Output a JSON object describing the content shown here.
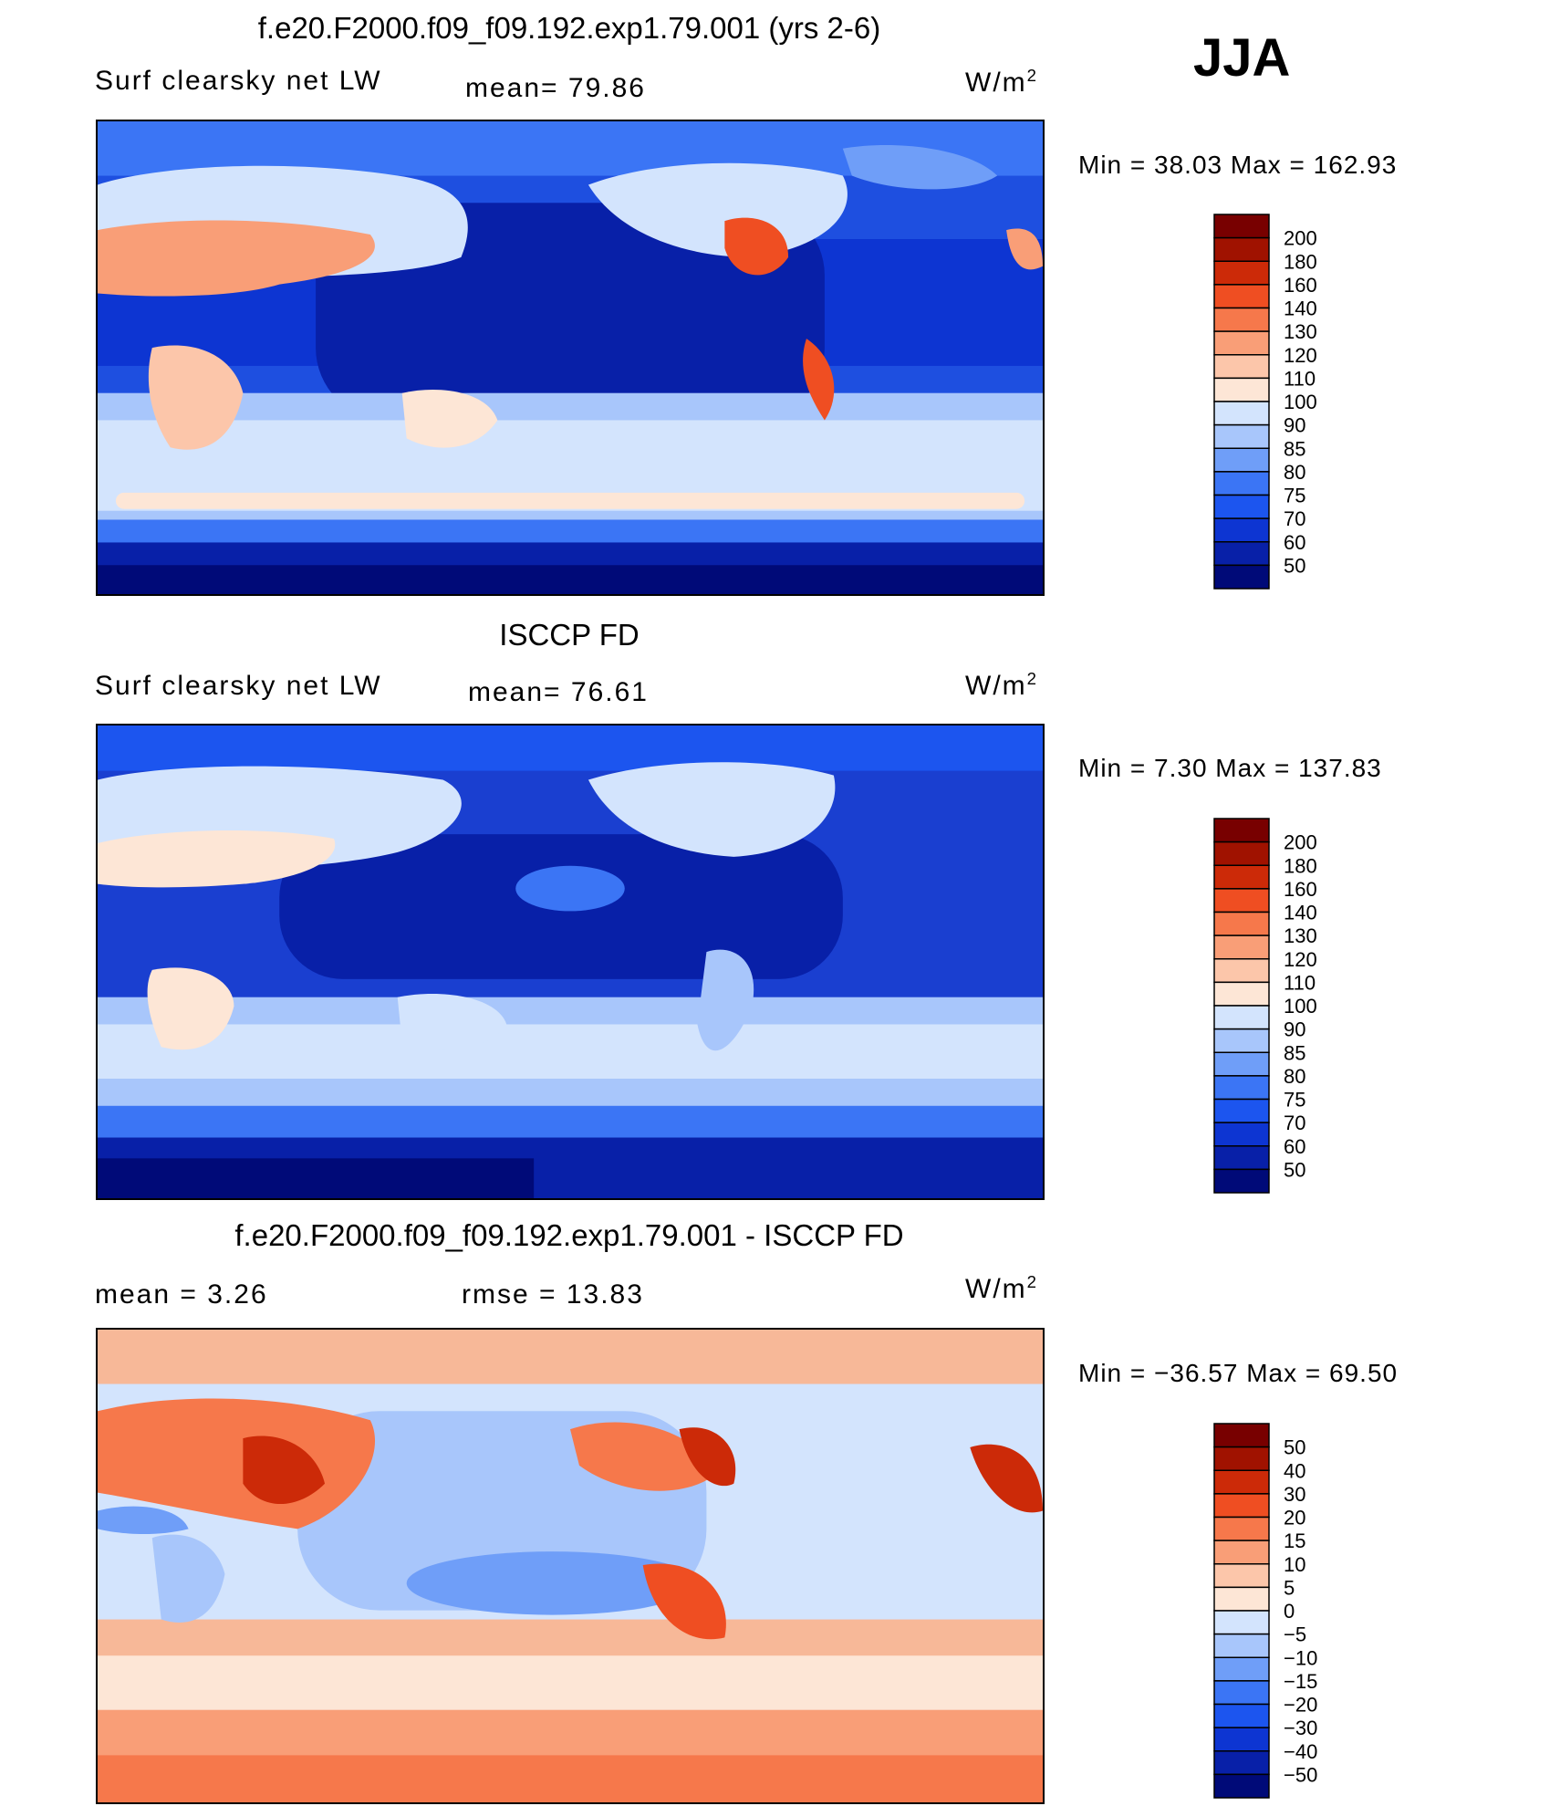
{
  "season": "JJA",
  "panels": [
    {
      "title": "f.e20.F2000.f09_f09.192.exp1.79.001 (yrs 2-6)",
      "variable": "Surf clearsky net LW",
      "stat1": "mean=   79.86",
      "stat2": "",
      "units": "W/m",
      "units_exp": "2",
      "minmax": "Min =   38.03 Max = 162.93",
      "palette": "abs",
      "map_base": "#1e4fe0"
    },
    {
      "title": "ISCCP FD",
      "variable": "Surf clearsky net LW",
      "stat1": "mean=   76.61",
      "stat2": "",
      "units": "W/m",
      "units_exp": "2",
      "minmax": "Min =    7.30 Max = 137.83",
      "palette": "abs",
      "map_base": "#1a3fd0"
    },
    {
      "title": "f.e20.F2000.f09_f09.192.exp1.79.001 - ISCCP FD",
      "variable": "",
      "stat1": "mean =    3.26",
      "stat2": "rmse =   13.83",
      "units": "W/m",
      "units_exp": "2",
      "minmax": "Min = −36.57 Max =   69.50",
      "palette": "diff",
      "map_base": "#f7b898"
    }
  ],
  "chart_data": [
    {
      "type": "heatmap",
      "title": "f.e20.F2000.f09_f09.192.exp1.79.001 (yrs 2-6)",
      "variable": "Surf clearsky net LW",
      "units": "W/m2",
      "mean": 79.86,
      "min": 38.03,
      "max": 162.93,
      "levels": [
        50,
        60,
        70,
        75,
        80,
        85,
        90,
        100,
        110,
        120,
        130,
        140,
        160,
        180,
        200
      ],
      "colors": [
        "#000a78",
        "#0820a8",
        "#0d35d2",
        "#1c55ef",
        "#3b75f5",
        "#6f9ef8",
        "#a8c6fb",
        "#d3e4fd",
        "#fde6d6",
        "#fcc6aa",
        "#f99e77",
        "#f6784b",
        "#ef4e22",
        "#cc2a08",
        "#a01200",
        "#780000"
      ]
    },
    {
      "type": "heatmap",
      "title": "ISCCP FD",
      "variable": "Surf clearsky net LW",
      "units": "W/m2",
      "mean": 76.61,
      "min": 7.3,
      "max": 137.83,
      "levels": [
        50,
        60,
        70,
        75,
        80,
        85,
        90,
        100,
        110,
        120,
        130,
        140,
        160,
        180,
        200
      ],
      "colors": [
        "#000a78",
        "#0820a8",
        "#0d35d2",
        "#1c55ef",
        "#3b75f5",
        "#6f9ef8",
        "#a8c6fb",
        "#d3e4fd",
        "#fde6d6",
        "#fcc6aa",
        "#f99e77",
        "#f6784b",
        "#ef4e22",
        "#cc2a08",
        "#a01200",
        "#780000"
      ]
    },
    {
      "type": "heatmap",
      "title": "f.e20.F2000.f09_f09.192.exp1.79.001 - ISCCP FD",
      "units": "W/m2",
      "mean": 3.26,
      "rmse": 13.83,
      "min": -36.57,
      "max": 69.5,
      "levels": [
        -50,
        -40,
        -30,
        -20,
        -15,
        -10,
        -5,
        0,
        5,
        10,
        15,
        20,
        30,
        40,
        50
      ],
      "colors": [
        "#000a78",
        "#0820a8",
        "#0d35d2",
        "#1c55ef",
        "#3b75f5",
        "#6f9ef8",
        "#a8c6fb",
        "#d3e4fd",
        "#fde6d6",
        "#fcc6aa",
        "#f99e77",
        "#f6784b",
        "#ef4e22",
        "#cc2a08",
        "#a01200",
        "#780000"
      ]
    }
  ],
  "colorbar_labels": {
    "abs": [
      "200",
      "180",
      "160",
      "140",
      "130",
      "120",
      "110",
      "100",
      "90",
      "85",
      "80",
      "75",
      "70",
      "60",
      "50"
    ],
    "diff": [
      "50",
      "40",
      "30",
      "20",
      "15",
      "10",
      "5",
      "0",
      "−5",
      "−10",
      "−15",
      "−20",
      "−30",
      "−40",
      "−50"
    ]
  },
  "colorbar_colors": [
    "#780000",
    "#a01200",
    "#cc2a08",
    "#ef4e22",
    "#f6784b",
    "#f99e77",
    "#fcc6aa",
    "#fde6d6",
    "#d3e4fd",
    "#a8c6fb",
    "#6f9ef8",
    "#3b75f5",
    "#1c55ef",
    "#0d35d2",
    "#0820a8",
    "#000a78"
  ]
}
